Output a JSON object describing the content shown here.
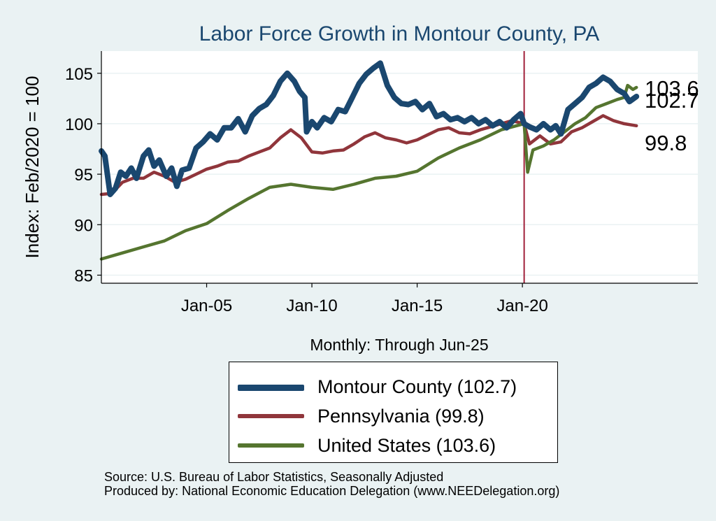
{
  "chart_data": {
    "type": "line",
    "title": "Labor Force Growth in Montour  County, PA",
    "ylabel": "Index: Feb/2020 = 100",
    "xlabel": "Monthly: Through Jun-25",
    "ylim": [
      84.2,
      107.2
    ],
    "xlim": [
      "2000-01",
      "2028-05"
    ],
    "yticks": [
      85,
      90,
      95,
      100,
      105
    ],
    "xticks": [
      {
        "date": "2005-01",
        "label": "Jan-05"
      },
      {
        "date": "2010-01",
        "label": "Jan-10"
      },
      {
        "date": "2015-01",
        "label": "Jan-15"
      },
      {
        "date": "2020-01",
        "label": "Jan-20"
      }
    ],
    "reference_line": {
      "date": "2020-02",
      "color": "#a0203a"
    },
    "grid": "horizontal",
    "legend_position": "bottom",
    "series": [
      {
        "name": "Montour  County (102.7)",
        "end_label": "102.7",
        "color": "#1a476f",
        "points": [
          [
            "2000-01",
            97.3
          ],
          [
            "2000-03",
            96.8
          ],
          [
            "2000-06",
            93.0
          ],
          [
            "2000-09",
            93.6
          ],
          [
            "2000-12",
            95.2
          ],
          [
            "2001-03",
            94.8
          ],
          [
            "2001-06",
            95.6
          ],
          [
            "2001-09",
            94.6
          ],
          [
            "2002-01",
            96.8
          ],
          [
            "2002-04",
            97.4
          ],
          [
            "2002-07",
            95.8
          ],
          [
            "2002-10",
            96.4
          ],
          [
            "2003-02",
            94.8
          ],
          [
            "2003-05",
            95.6
          ],
          [
            "2003-08",
            93.8
          ],
          [
            "2003-11",
            95.4
          ],
          [
            "2004-03",
            95.6
          ],
          [
            "2004-07",
            97.6
          ],
          [
            "2004-11",
            98.2
          ],
          [
            "2005-03",
            99.0
          ],
          [
            "2005-07",
            98.4
          ],
          [
            "2005-11",
            99.6
          ],
          [
            "2006-03",
            99.6
          ],
          [
            "2006-07",
            100.5
          ],
          [
            "2006-11",
            99.2
          ],
          [
            "2007-03",
            100.8
          ],
          [
            "2007-07",
            101.5
          ],
          [
            "2007-11",
            101.9
          ],
          [
            "2008-03",
            102.8
          ],
          [
            "2008-07",
            104.2
          ],
          [
            "2008-11",
            105.0
          ],
          [
            "2009-03",
            104.2
          ],
          [
            "2009-06",
            103.2
          ],
          [
            "2009-09",
            102.6
          ],
          [
            "2009-10",
            99.2
          ],
          [
            "2010-01",
            100.2
          ],
          [
            "2010-04",
            99.6
          ],
          [
            "2010-08",
            100.6
          ],
          [
            "2010-12",
            100.2
          ],
          [
            "2011-04",
            101.4
          ],
          [
            "2011-08",
            101.2
          ],
          [
            "2011-12",
            102.6
          ],
          [
            "2012-04",
            104.0
          ],
          [
            "2012-08",
            104.9
          ],
          [
            "2012-12",
            105.5
          ],
          [
            "2013-04",
            106.0
          ],
          [
            "2013-08",
            103.8
          ],
          [
            "2013-12",
            102.6
          ],
          [
            "2014-04",
            102.0
          ],
          [
            "2014-08",
            101.9
          ],
          [
            "2014-12",
            102.2
          ],
          [
            "2015-04",
            101.4
          ],
          [
            "2015-08",
            102.0
          ],
          [
            "2015-12",
            100.7
          ],
          [
            "2016-04",
            101.0
          ],
          [
            "2016-08",
            100.4
          ],
          [
            "2016-12",
            100.6
          ],
          [
            "2017-04",
            100.2
          ],
          [
            "2017-08",
            100.6
          ],
          [
            "2017-12",
            100.0
          ],
          [
            "2018-04",
            100.4
          ],
          [
            "2018-08",
            99.8
          ],
          [
            "2018-12",
            100.2
          ],
          [
            "2019-04",
            99.6
          ],
          [
            "2019-08",
            100.4
          ],
          [
            "2019-12",
            101.0
          ],
          [
            "2020-02",
            100.0
          ],
          [
            "2020-05",
            99.7
          ],
          [
            "2020-09",
            99.4
          ],
          [
            "2021-01",
            100.0
          ],
          [
            "2021-05",
            99.4
          ],
          [
            "2021-08",
            99.8
          ],
          [
            "2021-11",
            99.0
          ],
          [
            "2022-03",
            101.4
          ],
          [
            "2022-07",
            102.0
          ],
          [
            "2022-11",
            102.6
          ],
          [
            "2023-03",
            103.6
          ],
          [
            "2023-07",
            104.0
          ],
          [
            "2023-11",
            104.6
          ],
          [
            "2024-03",
            104.2
          ],
          [
            "2024-07",
            103.4
          ],
          [
            "2024-11",
            103.0
          ],
          [
            "2025-02",
            102.2
          ],
          [
            "2025-06",
            102.7
          ]
        ]
      },
      {
        "name": "Pennsylvania (99.8)",
        "end_label": "99.8",
        "color": "#90353b",
        "points": [
          [
            "2000-01",
            93.0
          ],
          [
            "2000-07",
            93.1
          ],
          [
            "2001-01",
            94.2
          ],
          [
            "2001-07",
            94.6
          ],
          [
            "2002-01",
            94.6
          ],
          [
            "2002-07",
            95.2
          ],
          [
            "2003-01",
            94.8
          ],
          [
            "2003-07",
            94.2
          ],
          [
            "2004-01",
            94.5
          ],
          [
            "2004-07",
            95.0
          ],
          [
            "2005-01",
            95.5
          ],
          [
            "2005-07",
            95.8
          ],
          [
            "2006-01",
            96.2
          ],
          [
            "2006-07",
            96.3
          ],
          [
            "2007-01",
            96.8
          ],
          [
            "2007-07",
            97.2
          ],
          [
            "2008-01",
            97.6
          ],
          [
            "2008-07",
            98.6
          ],
          [
            "2009-01",
            99.4
          ],
          [
            "2009-07",
            98.6
          ],
          [
            "2010-01",
            97.2
          ],
          [
            "2010-07",
            97.1
          ],
          [
            "2011-01",
            97.3
          ],
          [
            "2011-07",
            97.4
          ],
          [
            "2012-01",
            98.0
          ],
          [
            "2012-07",
            98.7
          ],
          [
            "2013-01",
            99.1
          ],
          [
            "2013-07",
            98.6
          ],
          [
            "2014-01",
            98.4
          ],
          [
            "2014-07",
            98.1
          ],
          [
            "2015-01",
            98.4
          ],
          [
            "2015-07",
            98.9
          ],
          [
            "2016-01",
            99.4
          ],
          [
            "2016-07",
            99.6
          ],
          [
            "2017-01",
            99.1
          ],
          [
            "2017-07",
            99.0
          ],
          [
            "2018-01",
            99.4
          ],
          [
            "2018-07",
            99.7
          ],
          [
            "2019-01",
            100.0
          ],
          [
            "2019-07",
            100.3
          ],
          [
            "2020-02",
            100.0
          ],
          [
            "2020-05",
            98.0
          ],
          [
            "2020-11",
            98.8
          ],
          [
            "2021-05",
            98.0
          ],
          [
            "2021-11",
            98.2
          ],
          [
            "2022-05",
            99.2
          ],
          [
            "2022-11",
            99.6
          ],
          [
            "2023-05",
            100.2
          ],
          [
            "2023-11",
            100.8
          ],
          [
            "2024-05",
            100.3
          ],
          [
            "2024-11",
            100.0
          ],
          [
            "2025-06",
            99.8
          ]
        ]
      },
      {
        "name": "United States (103.6)",
        "end_label": "103.6",
        "color": "#55752f",
        "points": [
          [
            "2000-01",
            86.6
          ],
          [
            "2001-01",
            87.2
          ],
          [
            "2002-01",
            87.8
          ],
          [
            "2003-01",
            88.4
          ],
          [
            "2004-01",
            89.4
          ],
          [
            "2005-01",
            90.1
          ],
          [
            "2006-01",
            91.4
          ],
          [
            "2007-01",
            92.6
          ],
          [
            "2008-01",
            93.7
          ],
          [
            "2009-01",
            94.0
          ],
          [
            "2010-01",
            93.7
          ],
          [
            "2011-01",
            93.5
          ],
          [
            "2012-01",
            94.0
          ],
          [
            "2013-01",
            94.6
          ],
          [
            "2014-01",
            94.8
          ],
          [
            "2015-01",
            95.3
          ],
          [
            "2016-01",
            96.6
          ],
          [
            "2017-01",
            97.6
          ],
          [
            "2018-01",
            98.4
          ],
          [
            "2019-01",
            99.4
          ],
          [
            "2020-02",
            100.0
          ],
          [
            "2020-04",
            95.2
          ],
          [
            "2020-07",
            97.4
          ],
          [
            "2021-01",
            97.8
          ],
          [
            "2021-07",
            98.4
          ],
          [
            "2022-01",
            99.2
          ],
          [
            "2022-07",
            100.0
          ],
          [
            "2023-01",
            100.6
          ],
          [
            "2023-07",
            101.6
          ],
          [
            "2024-01",
            102.0
          ],
          [
            "2024-07",
            102.4
          ],
          [
            "2024-11",
            102.6
          ],
          [
            "2025-01",
            103.8
          ],
          [
            "2025-04",
            103.4
          ],
          [
            "2025-06",
            103.6
          ]
        ]
      }
    ]
  },
  "source": {
    "line1": "Source: U.S. Bureau of Labor Statistics, Seasonally Adjusted",
    "line2": "Produced by: National Economic Education Delegation (www.NEEDelegation.org)"
  }
}
